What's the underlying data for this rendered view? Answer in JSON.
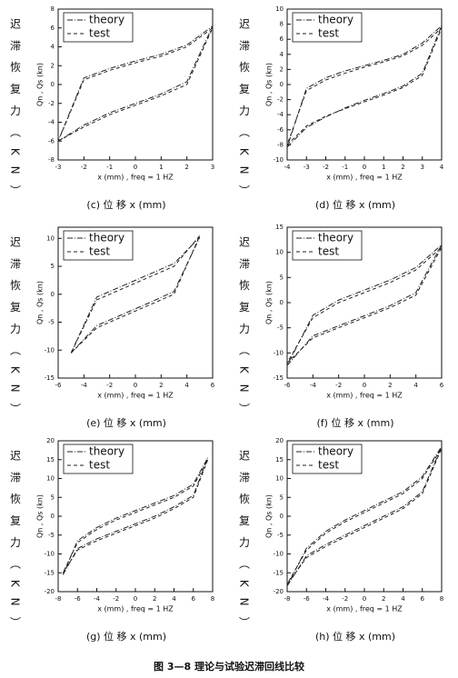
{
  "chart_data": [
    {
      "type": "line",
      "caption": "(c) 位 移 x (mm)",
      "outer_ylabel": "迟 滞 恢 复 力 （ K N ）",
      "ylabel": "Qn , Qs (kn)",
      "xlabel": "x (mm) , freq = 1 HZ",
      "xlim": [
        -3,
        3
      ],
      "xticks": [
        -3,
        -2,
        -1,
        0,
        1,
        2,
        3
      ],
      "ylim": [
        -8,
        8
      ],
      "yticks": [
        -8,
        -6,
        -4,
        -2,
        0,
        2,
        4,
        6,
        8
      ],
      "x": [
        -3,
        -2,
        -1,
        0,
        1,
        2,
        3,
        2,
        1,
        0,
        -1,
        -2,
        -3
      ],
      "series": [
        {
          "name": "theory",
          "color": "#222",
          "values": [
            -6,
            -4.3,
            -3,
            -2,
            -1,
            0.3,
            6.2,
            4.2,
            3.2,
            2.5,
            1.7,
            0.7,
            -6
          ]
        },
        {
          "name": "test",
          "color": "#222",
          "values": [
            -6,
            -4.5,
            -3.2,
            -2.2,
            -1.2,
            0,
            6,
            4,
            3,
            2.3,
            1.5,
            0.5,
            -6
          ]
        }
      ]
    },
    {
      "type": "line",
      "caption": "(d) 位 移 x (mm)",
      "outer_ylabel": "迟 滞 恢 复 力 （ K N ）",
      "ylabel": "Qn , Qs (kn)",
      "xlabel": "x (mm) , freq = 1 HZ",
      "xlim": [
        -4,
        4
      ],
      "xticks": [
        -4,
        -3,
        -2,
        -1,
        0,
        1,
        2,
        3,
        4
      ],
      "ylim": [
        -10,
        10
      ],
      "yticks": [
        -10,
        -8,
        -6,
        -4,
        -2,
        0,
        2,
        4,
        6,
        8,
        10
      ],
      "x": [
        -4,
        -3,
        -2,
        -1,
        0,
        1,
        2,
        3,
        4,
        3,
        2,
        1,
        0,
        -1,
        -2,
        -3,
        -4
      ],
      "series": [
        {
          "name": "theory",
          "color": "#222",
          "values": [
            -8.3,
            -5.7,
            -4.3,
            -3.1,
            -2.1,
            -1.2,
            -0.2,
            1.5,
            7.8,
            5.5,
            4,
            3.2,
            2.5,
            1.8,
            0.9,
            -0.5,
            -8.3
          ]
        },
        {
          "name": "test",
          "color": "#222",
          "values": [
            -8,
            -5.5,
            -4.2,
            -3.2,
            -2.3,
            -1.4,
            -0.4,
            1.2,
            7.5,
            5.2,
            3.8,
            3,
            2.3,
            1.5,
            0.6,
            -0.8,
            -8
          ]
        }
      ]
    },
    {
      "type": "line",
      "caption": "(e) 位 移 x (mm)",
      "outer_ylabel": "迟 滞 恢 复 力 （ K N ）",
      "ylabel": "Qn , Qs (kn)",
      "xlabel": "x (mm) , freq = 1 HZ",
      "xlim": [
        -6,
        6
      ],
      "xticks": [
        -6,
        -4,
        -2,
        0,
        2,
        4,
        6
      ],
      "ylim": [
        -15,
        12
      ],
      "yticks": [
        -15,
        -10,
        -5,
        0,
        5,
        10
      ],
      "x": [
        -5,
        -3,
        -1,
        1,
        3,
        5,
        3,
        1,
        -1,
        -3,
        -5
      ],
      "series": [
        {
          "name": "theory",
          "color": "#222",
          "values": [
            -10.5,
            -5.6,
            -3.6,
            -1.6,
            0.5,
            10.2,
            5.5,
            3.5,
            1.5,
            -0.5,
            -10.5
          ]
        },
        {
          "name": "test",
          "color": "#222",
          "values": [
            -10.5,
            -6,
            -4,
            -2,
            0,
            10.5,
            5,
            3,
            1,
            -1,
            -10.5
          ]
        }
      ]
    },
    {
      "type": "line",
      "caption": "(f) 位 移 x (mm)",
      "outer_ylabel": "迟 滞 恢 复 力 （ K N ）",
      "ylabel": "Qn , Qs (kn)",
      "xlabel": "x (mm) , freq = 1 HZ",
      "xlim": [
        -6,
        6
      ],
      "xticks": [
        -6,
        -4,
        -2,
        0,
        2,
        4,
        6
      ],
      "ylim": [
        -15,
        15
      ],
      "yticks": [
        -15,
        -10,
        -5,
        0,
        5,
        10,
        15
      ],
      "x": [
        -6,
        -4,
        -2,
        0,
        2,
        4,
        6,
        4,
        2,
        0,
        -2,
        -4,
        -6
      ],
      "series": [
        {
          "name": "theory",
          "color": "#222",
          "values": [
            -12.5,
            -6.6,
            -4.6,
            -2.6,
            -0.6,
            2,
            11.5,
            7,
            4.5,
            2.5,
            0.5,
            -2.5,
            -12.5
          ]
        },
        {
          "name": "test",
          "color": "#222",
          "values": [
            -12,
            -7,
            -5,
            -3,
            -1,
            1.5,
            11,
            6.5,
            4,
            2,
            0,
            -3,
            -12
          ]
        }
      ]
    },
    {
      "type": "line",
      "caption": "(g) 位 移 x (mm)",
      "outer_ylabel": "迟 滞 恢 复 力 （ K N ）",
      "ylabel": "Qn , Qs (kn)",
      "xlabel": "x (mm) , freq = 1 HZ",
      "xlim": [
        -8,
        8
      ],
      "xticks": [
        -8,
        -6,
        -4,
        -2,
        0,
        2,
        4,
        6,
        8
      ],
      "ylim": [
        -20,
        20
      ],
      "yticks": [
        -20,
        -15,
        -10,
        -5,
        0,
        5,
        10,
        15,
        20
      ],
      "x": [
        -7.5,
        -6,
        -4,
        -2,
        0,
        2,
        4,
        6,
        7.5,
        6,
        4,
        2,
        0,
        -2,
        -4,
        -6,
        -7.5
      ],
      "series": [
        {
          "name": "theory",
          "color": "#222",
          "values": [
            -15.5,
            -8.6,
            -6,
            -4,
            -2,
            0,
            2.5,
            5.5,
            15.5,
            8.5,
            5.5,
            3.5,
            1.5,
            -0.5,
            -3,
            -6.5,
            -15.5
          ]
        },
        {
          "name": "test",
          "color": "#222",
          "values": [
            -15,
            -9,
            -6.5,
            -4.5,
            -2.5,
            -0.5,
            2,
            5,
            15,
            8,
            5,
            3,
            1,
            -1,
            -3.5,
            -7,
            -15
          ]
        }
      ]
    },
    {
      "type": "line",
      "caption": "(h) 位 移 x (mm)",
      "outer_ylabel": "迟 滞 恢 复 力 （ K N ）",
      "ylabel": "Qn , Qs (kn)",
      "xlabel": "x (mm) , freq = 1 HZ",
      "xlim": [
        -8,
        8
      ],
      "xticks": [
        -8,
        -6,
        -4,
        -2,
        0,
        2,
        4,
        6,
        8
      ],
      "ylim": [
        -20,
        20
      ],
      "yticks": [
        -20,
        -15,
        -10,
        -5,
        0,
        5,
        10,
        15,
        20
      ],
      "x": [
        -8,
        -6,
        -4,
        -2,
        0,
        2,
        4,
        6,
        8,
        6,
        4,
        2,
        0,
        -2,
        -4,
        -6,
        -8
      ],
      "series": [
        {
          "name": "theory",
          "color": "#222",
          "values": [
            -18.5,
            -10.5,
            -7.5,
            -5,
            -2.5,
            0,
            2.5,
            6.5,
            18.5,
            10.5,
            6.5,
            4,
            1.5,
            -1,
            -4,
            -8.5,
            -18.5
          ]
        },
        {
          "name": "test",
          "color": "#222",
          "values": [
            -18,
            -11,
            -8,
            -5.5,
            -3,
            -0.5,
            2,
            6,
            18,
            10,
            6,
            3.5,
            1,
            -1.5,
            -4.5,
            -9,
            -18
          ]
        }
      ]
    }
  ],
  "figure_caption": "图 3—8 理论与试验迟滞回线比较"
}
